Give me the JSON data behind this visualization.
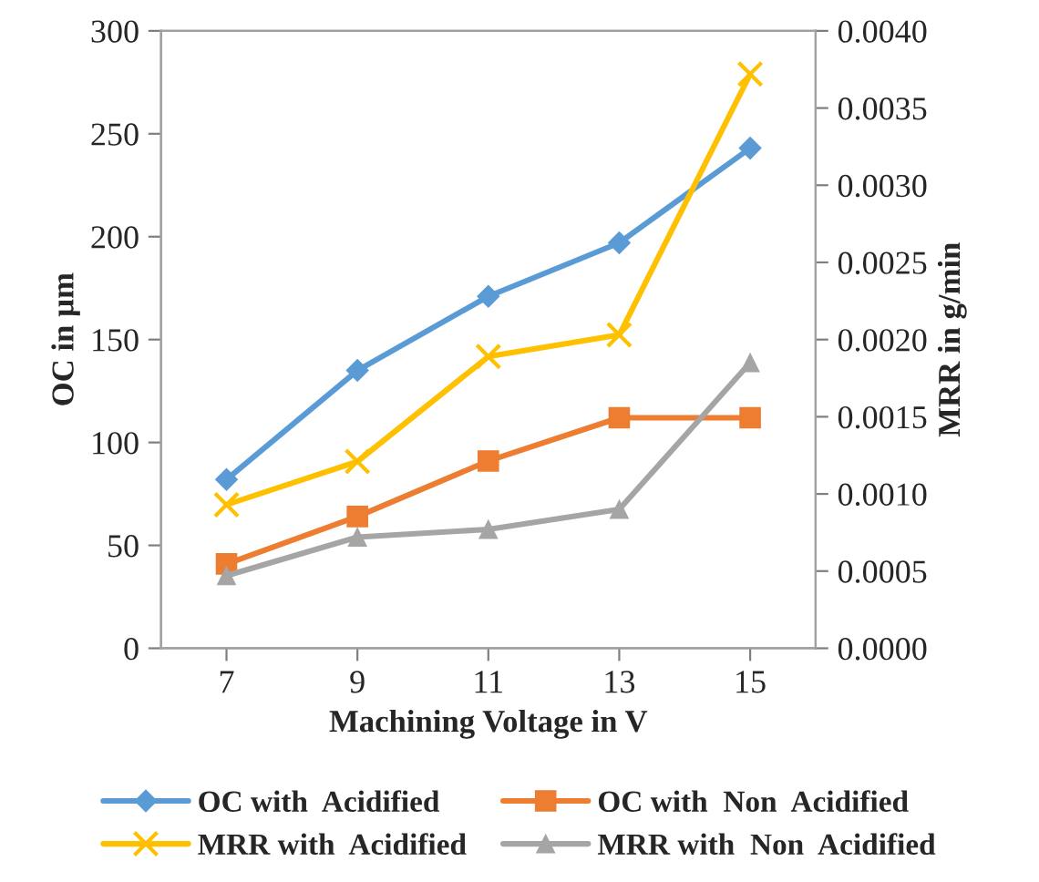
{
  "chart_data": {
    "type": "line",
    "xlabel": "Machining Voltage in V",
    "ylabel": "OC in µm",
    "y2label": "MRR in g/min",
    "categories": [
      "7",
      "9",
      "11",
      "13",
      "15"
    ],
    "series": [
      {
        "name": "OC with  Acidified",
        "color": "#5b9bd5",
        "marker": "diamond",
        "values": [
          82,
          135,
          171,
          197,
          243
        ]
      },
      {
        "name": "OC with  Non  Acidified",
        "color": "#ed7d31",
        "marker": "square",
        "values": [
          41,
          64,
          91,
          112,
          112
        ]
      },
      {
        "name": "MRR with  Acidified",
        "color": "#ffc000",
        "marker": "cross",
        "axis": "y2",
        "values": [
          0.00093,
          0.00121,
          0.00189,
          0.00203,
          0.00372
        ]
      },
      {
        "name": "MRR with  Non  Acidified",
        "color": "#a5a5a5",
        "marker": "triangle",
        "axis": "y2",
        "values": [
          0.00047,
          0.00072,
          0.00077,
          0.0009,
          0.00185
        ]
      }
    ],
    "ylim": [
      0,
      300
    ],
    "yticks": [
      0,
      50,
      100,
      150,
      200,
      250,
      300
    ],
    "y2lim": [
      0,
      0.004
    ],
    "y2ticks": [
      {
        "value": 0,
        "label": "0.0000"
      },
      {
        "value": 0.0005,
        "label": "0.0005"
      },
      {
        "value": 0.001,
        "label": "0.0010"
      },
      {
        "value": 0.0015,
        "label": "0.0015"
      },
      {
        "value": 0.002,
        "label": "0.0020"
      },
      {
        "value": 0.0025,
        "label": "0.0025"
      },
      {
        "value": 0.003,
        "label": "0.0030"
      },
      {
        "value": 0.0035,
        "label": "0.0035"
      },
      {
        "value": 0.004,
        "label": "0.0040"
      }
    ],
    "legend": "bottom",
    "grid": false,
    "line_style": "solid"
  }
}
